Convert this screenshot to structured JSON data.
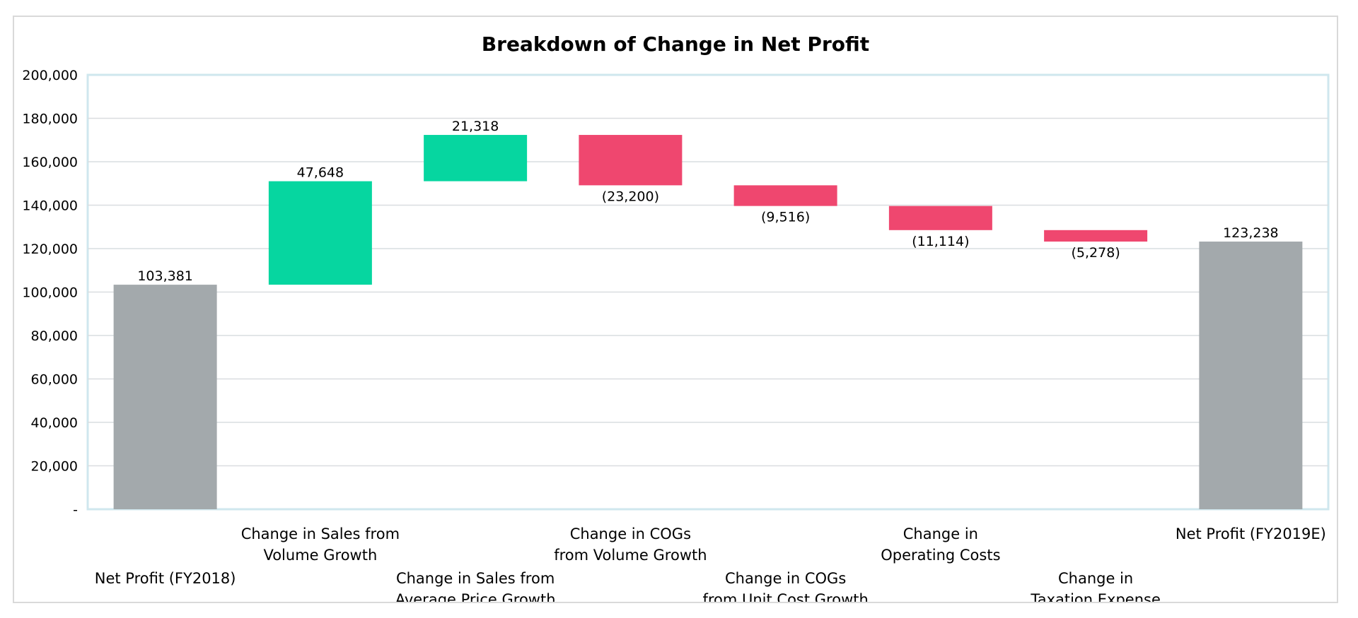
{
  "chart_data": {
    "type": "bar",
    "subtype": "waterfall",
    "title": "Breakdown of Change in Net Profit",
    "xlabel": "",
    "ylabel": "",
    "ylim": [
      0,
      200000
    ],
    "yticks": [
      0,
      20000,
      40000,
      60000,
      80000,
      100000,
      120000,
      140000,
      160000,
      180000,
      200000
    ],
    "ytick_labels": [
      "-",
      "20,000",
      "40,000",
      "60,000",
      "80,000",
      "100,000",
      "120,000",
      "140,000",
      "160,000",
      "180,000",
      "200,000"
    ],
    "grid": true,
    "legend": "none",
    "colors": {
      "total": "#a3a9ac",
      "increase": "#06d6a0",
      "decrease": "#ef476f",
      "grid": "#d9dde0",
      "axis": "#cfe7ee"
    },
    "categories": [
      "Net Profit (FY2018)",
      "Change in Sales from Volume Growth",
      "Change in Sales from Average Price Growth",
      "Change in COGs from Volume Growth",
      "Change in COGs from Unit Cost Growth",
      "Change in Operating Costs",
      "Change in Taxation Expense",
      "Net Profit (FY2019E)"
    ],
    "category_lines": [
      [
        "Net Profit (FY2018)"
      ],
      [
        "Change in Sales from",
        "Volume Growth"
      ],
      [
        "Change in Sales from",
        "Average Price Growth"
      ],
      [
        "Change in COGs",
        "from Volume Growth"
      ],
      [
        "Change in COGs",
        "from Unit Cost Growth"
      ],
      [
        "Change in",
        "Operating Costs"
      ],
      [
        "Change in",
        "Taxation Expense"
      ],
      [
        "Net Profit (FY2019E)"
      ]
    ],
    "values": [
      103381,
      47648,
      21318,
      -23200,
      -9516,
      -11114,
      -5278,
      123238
    ],
    "kinds": [
      "total",
      "increase",
      "increase",
      "decrease",
      "decrease",
      "decrease",
      "decrease",
      "total"
    ],
    "data_labels": [
      "103,381",
      "47,648",
      "21,318",
      "(23,200)",
      "(9,516)",
      "(11,114)",
      "(5,278)",
      "123,238"
    ]
  }
}
